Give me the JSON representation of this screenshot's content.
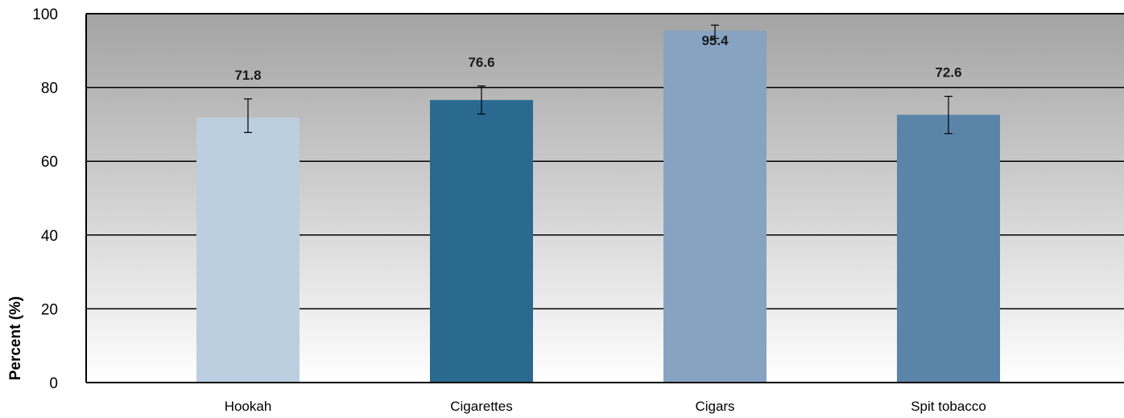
{
  "chart_data": {
    "type": "bar",
    "title": "",
    "xlabel": "",
    "ylabel": "Percent (%)",
    "ylim": [
      0,
      100
    ],
    "yticks": [
      0,
      20,
      40,
      60,
      80,
      100
    ],
    "grid": true,
    "legend": "none",
    "categories": [
      "Hookah",
      "Cigarettes",
      "Cigars",
      "Spit tobacco"
    ],
    "values": [
      71.8,
      76.6,
      95.4,
      72.6
    ],
    "error_bars": [
      {
        "low": 67.8,
        "high": 76.9
      },
      {
        "low": 72.8,
        "high": 80.4
      },
      {
        "low": 93.3,
        "high": 96.9
      },
      {
        "low": 67.5,
        "high": 77.6
      }
    ],
    "data_labels": [
      "71.8",
      "76.6",
      "95.4",
      "72.6"
    ],
    "colors": [
      "#bccfe0",
      "#2a6a91",
      "#86a3c2",
      "#5a85a9"
    ],
    "background_gradient": [
      "#a3a3a3",
      "#ffffff"
    ]
  }
}
